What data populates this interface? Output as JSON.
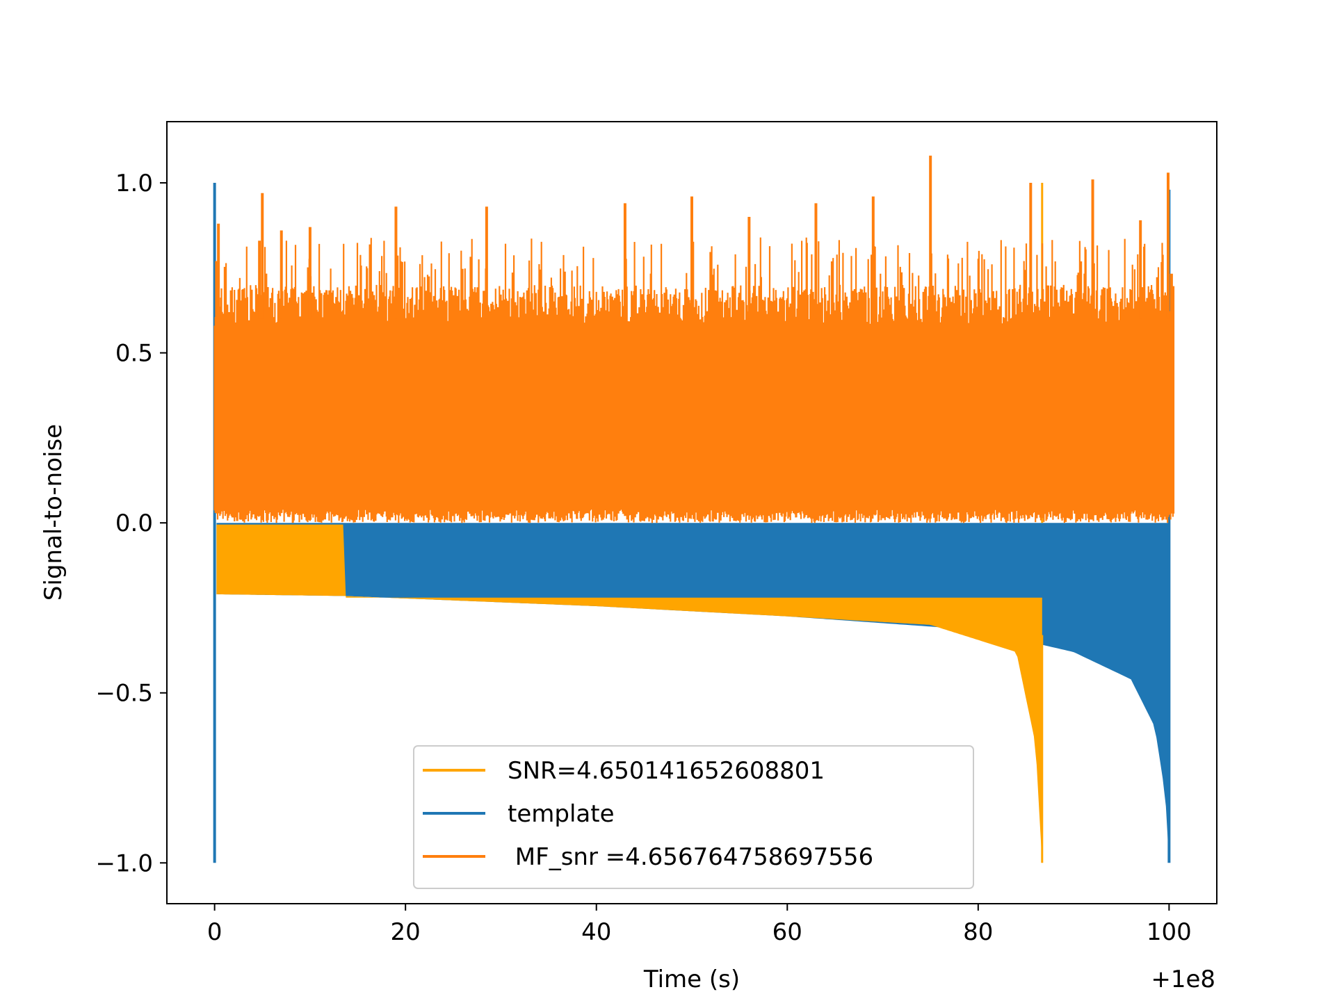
{
  "chart_data": {
    "type": "line",
    "title": "",
    "xlabel": "Time (s)",
    "ylabel": "Signal-to-noise",
    "xlim": [
      -5,
      105
    ],
    "ylim": [
      -1.12,
      1.18
    ],
    "x_offset_label": "+1e8",
    "xticks": [
      0,
      20,
      40,
      60,
      80,
      100
    ],
    "xtick_labels": [
      "0",
      "20",
      "40",
      "60",
      "80",
      "100"
    ],
    "yticks": [
      1.0,
      0.5,
      0.0,
      -0.5,
      -1.0
    ],
    "ytick_labels": [
      "1.0",
      "0.5",
      "0.0",
      "−0.5",
      "−1.0"
    ],
    "grid": false,
    "legend_placement": "lower-center",
    "series": [
      {
        "name": "SNR=4.650141652608801",
        "color": "#ffa500",
        "kind": "chirp-envelope",
        "start": 0.0,
        "end": 86.7,
        "lower_envelope": [
          [
            0.2,
            -0.21
          ],
          [
            13.5,
            -0.215
          ],
          [
            40,
            -0.245
          ],
          [
            60,
            -0.275
          ],
          [
            75,
            -0.3
          ],
          [
            84,
            -0.38
          ],
          [
            86,
            -0.65
          ],
          [
            86.7,
            -1.0
          ]
        ],
        "upper_envelope_before": 13.5,
        "upper_value_before": -0.005
      },
      {
        "name": "template",
        "color": "#1f77b4",
        "kind": "chirp-envelope",
        "start": 0.0,
        "end": 100.0,
        "lower_envelope": [
          [
            0.2,
            -0.21
          ],
          [
            13.5,
            -0.215
          ],
          [
            40,
            -0.245
          ],
          [
            60,
            -0.275
          ],
          [
            80,
            -0.315
          ],
          [
            90,
            -0.38
          ],
          [
            96,
            -0.46
          ],
          [
            98.5,
            -0.6
          ],
          [
            99.6,
            -0.8
          ],
          [
            100,
            -1.0
          ]
        ],
        "upper_value": 0.0
      },
      {
        "name": " MF_snr =4.656764758697556",
        "color": "#ff7f0e",
        "kind": "noise",
        "start": 0.0,
        "end": 100.5,
        "typical_range": [
          0.02,
          0.7
        ],
        "peaks": [
          [
            0.2,
            0.77
          ],
          [
            0.4,
            0.88
          ],
          [
            4.7,
            0.83
          ],
          [
            5.0,
            0.97
          ],
          [
            7.0,
            0.86
          ],
          [
            10.0,
            0.87
          ],
          [
            19.0,
            0.93
          ],
          [
            28.5,
            0.93
          ],
          [
            43.0,
            0.94
          ],
          [
            50.0,
            0.96
          ],
          [
            56.0,
            0.9
          ],
          [
            63.0,
            0.94
          ],
          [
            69.0,
            0.96
          ],
          [
            75.0,
            1.08
          ],
          [
            85.5,
            1.0
          ],
          [
            92.0,
            1.01
          ],
          [
            97.0,
            0.89
          ],
          [
            99.9,
            1.03
          ]
        ]
      }
    ]
  }
}
